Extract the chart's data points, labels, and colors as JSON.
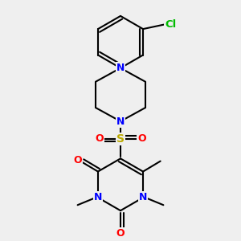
{
  "bg_color": "#efefef",
  "bond_color": "#000000",
  "bond_width": 1.5,
  "atom_colors": {
    "N": "#0000ff",
    "O": "#ff0000",
    "S": "#bbaa00",
    "Cl": "#00bb00",
    "C": "#000000"
  },
  "font_size": 9
}
